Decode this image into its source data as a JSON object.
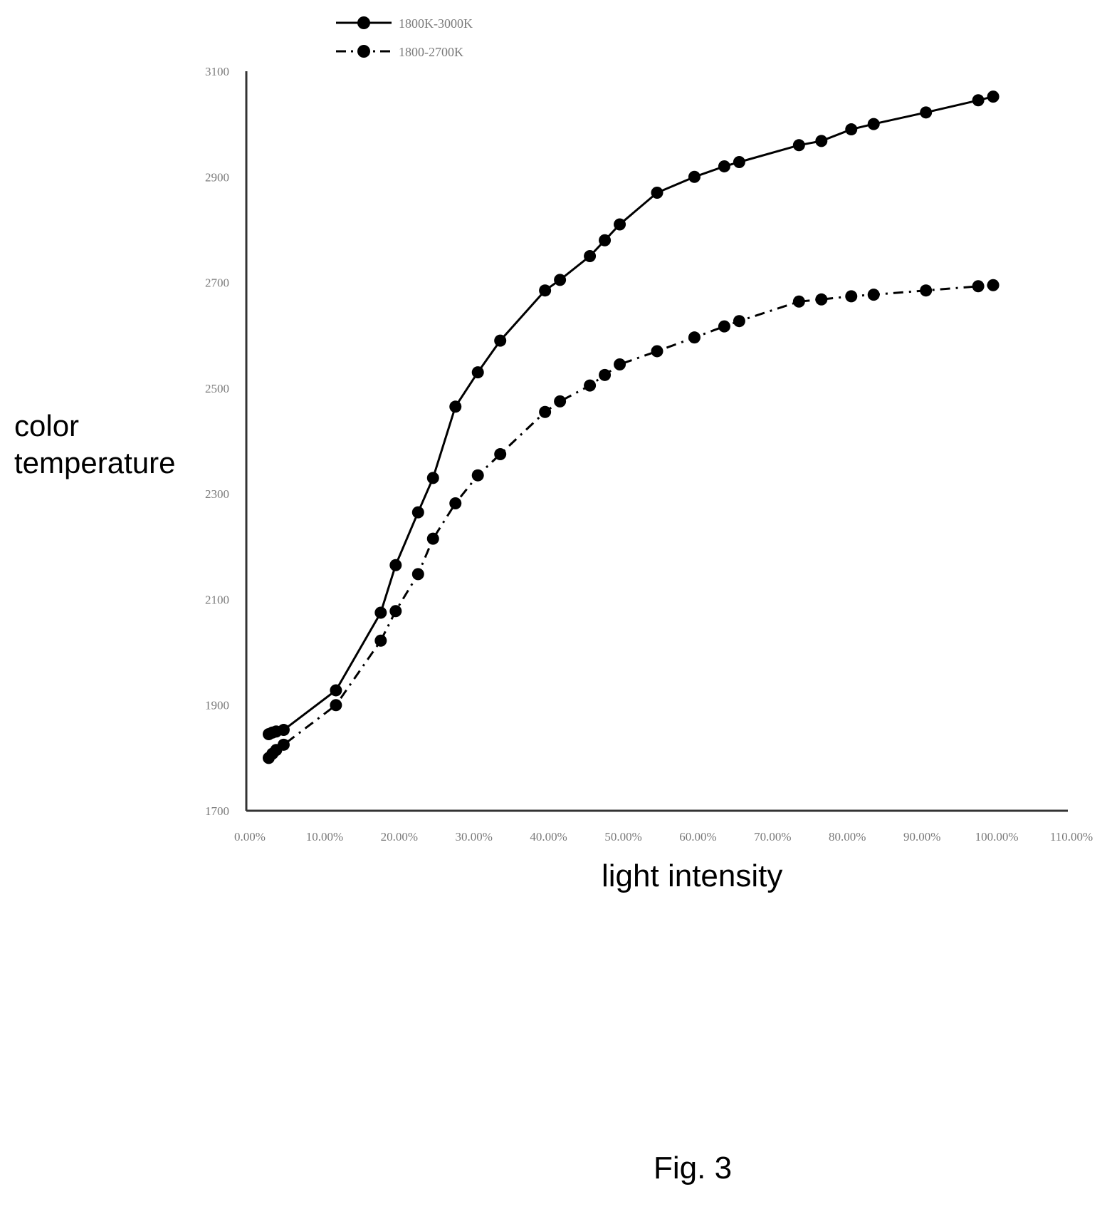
{
  "figure": {
    "caption": "Fig. 3"
  },
  "chart_data": {
    "type": "line",
    "title": "",
    "xlabel": "light intensity",
    "ylabel": "color\ntemperature",
    "xlim": [
      0,
      110
    ],
    "ylim": [
      1700,
      3100
    ],
    "xticks": [
      "0.00%",
      "10.00%",
      "20.00%",
      "30.00%",
      "40.00%",
      "50.00%",
      "60.00%",
      "70.00%",
      "80.00%",
      "90.00%",
      "100.00%",
      "110.00%"
    ],
    "yticks": [
      "1700",
      "1900",
      "2100",
      "2300",
      "2500",
      "2700",
      "2900",
      "3100"
    ],
    "grid": false,
    "legend": "top-left",
    "series": [
      {
        "name": "1800K-3000K",
        "style": "solid",
        "color": "#000000",
        "x": [
          3,
          3.5,
          4,
          5,
          12,
          18,
          20,
          23,
          25,
          28,
          31,
          34,
          40,
          42,
          46,
          48,
          50,
          55,
          60,
          64,
          66,
          74,
          77,
          81,
          84,
          91,
          98,
          100
        ],
        "y": [
          1845,
          1848,
          1850,
          1853,
          1928,
          2075,
          2165,
          2265,
          2330,
          2465,
          2530,
          2590,
          2685,
          2705,
          2750,
          2780,
          2810,
          2870,
          2900,
          2920,
          2928,
          2960,
          2968,
          2990,
          3000,
          3022,
          3045,
          3052
        ]
      },
      {
        "name": "1800-2700K",
        "style": "dashdot",
        "color": "#000000",
        "x": [
          3,
          3.5,
          4,
          5,
          12,
          18,
          20,
          23,
          25,
          28,
          31,
          34,
          40,
          42,
          46,
          48,
          50,
          55,
          60,
          64,
          66,
          74,
          77,
          81,
          84,
          91,
          98,
          100
        ],
        "y": [
          1800,
          1808,
          1815,
          1825,
          1900,
          2022,
          2078,
          2148,
          2215,
          2282,
          2335,
          2375,
          2455,
          2475,
          2505,
          2525,
          2545,
          2570,
          2596,
          2617,
          2627,
          2664,
          2668,
          2674,
          2677,
          2685,
          2693,
          2695
        ]
      }
    ]
  }
}
